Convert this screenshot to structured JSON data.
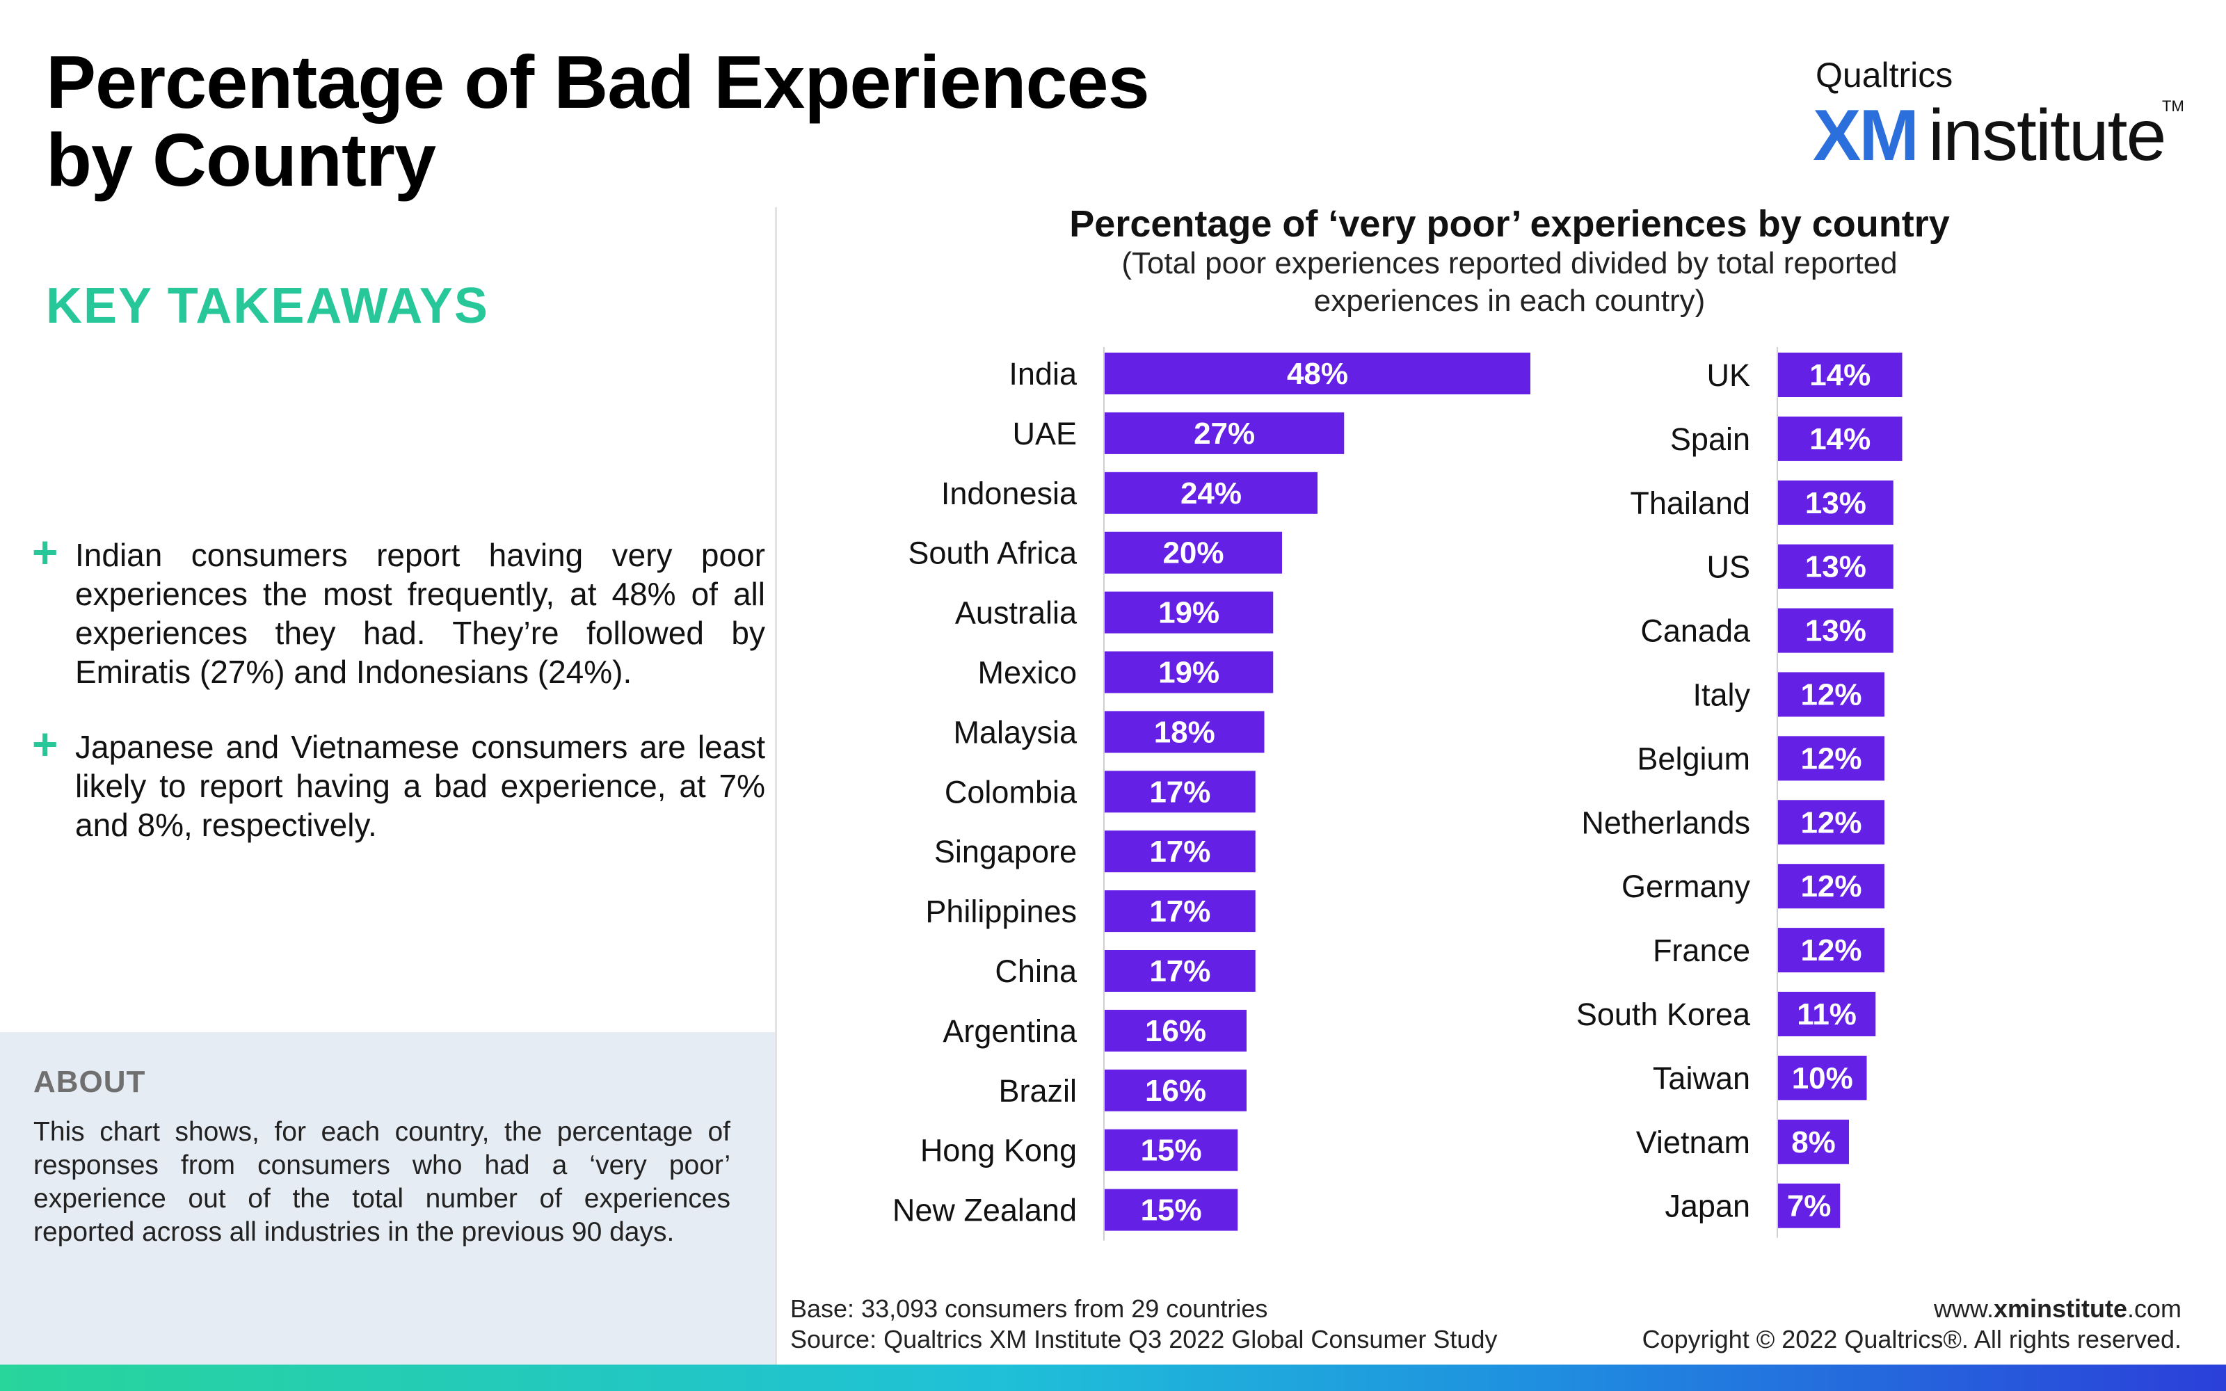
{
  "header": {
    "title_line1": "Percentage of Bad Experiences",
    "title_line2": "by Country"
  },
  "logo": {
    "company": "Qualtrics",
    "xm": "XM",
    "institute": "institute",
    "tm": "TM"
  },
  "takeaways": {
    "heading": "KEY TAKEAWAYS",
    "items": [
      "Indian consumers report having very poor experiences the most frequently, at 48% of all experiences they had. They’re followed by Emiratis (27%) and Indonesians (24%).",
      "Japanese and Vietnamese consumers are least likely to report having a bad experience, at 7% and 8%, respectively."
    ],
    "bullet_symbol": "+"
  },
  "about": {
    "heading": "ABOUT",
    "text": "This chart shows, for each country, the percentage of responses from consumers who had a ‘very poor’ experience out of the total number of experiences reported across all industries in the previous 90 days."
  },
  "chart_data": {
    "type": "bar",
    "orientation": "horizontal",
    "title": "Percentage of ‘very poor’ experiences by country",
    "subtitle_line1": "(Total poor experiences reported divided by total reported",
    "subtitle_line2": "experiences in each country)",
    "unit": "%",
    "bar_color": "#6520e6",
    "label_color": "#ffffff",
    "panels": [
      {
        "categories": [
          "India",
          "UAE",
          "Indonesia",
          "South Africa",
          "Australia",
          "Mexico",
          "Malaysia",
          "Colombia",
          "Singapore",
          "Philippines",
          "China",
          "Argentina",
          "Brazil",
          "Hong Kong",
          "New Zealand"
        ],
        "values": [
          48,
          27,
          24,
          20,
          19,
          19,
          18,
          17,
          17,
          17,
          17,
          16,
          16,
          15,
          15
        ]
      },
      {
        "categories": [
          "UK",
          "Spain",
          "Thailand",
          "US",
          "Canada",
          "Italy",
          "Belgium",
          "Netherlands",
          "Germany",
          "France",
          "South Korea",
          "Taiwan",
          "Vietnam",
          "Japan"
        ],
        "values": [
          14,
          14,
          13,
          13,
          13,
          12,
          12,
          12,
          12,
          12,
          11,
          10,
          8,
          7
        ]
      }
    ]
  },
  "footer": {
    "base": "Base: 33,093 consumers from 29 countries",
    "source": "Source: Qualtrics XM Institute Q3 2022 Global Consumer Study",
    "url_prefix": "www.",
    "url_bold": "xminstitute",
    "url_suffix": ".com",
    "copyright": "Copyright © 2022 Qualtrics®. All rights reserved."
  },
  "colors": {
    "accent_green": "#27c79a",
    "brand_blue": "#2a6fdb",
    "bar_purple": "#6520e6",
    "about_bg": "#e6ecf3"
  }
}
